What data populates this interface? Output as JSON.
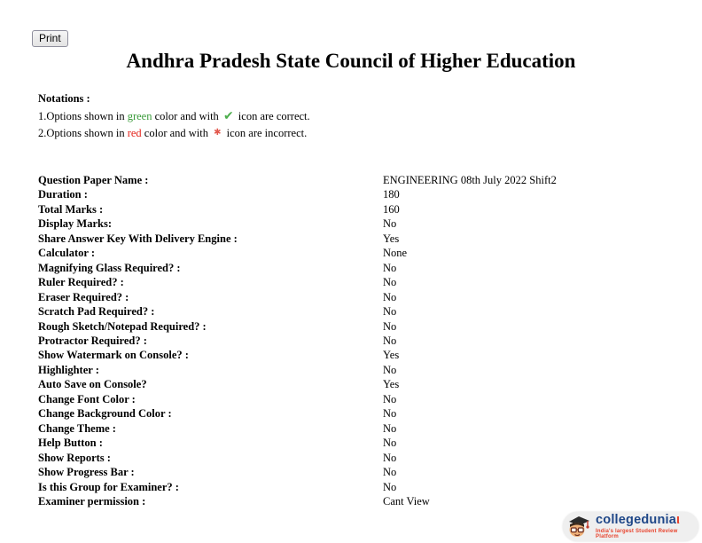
{
  "toolbar": {
    "print_label": "Print"
  },
  "header": {
    "title": "Andhra Pradesh State Council of Higher Education"
  },
  "notations": {
    "heading": "Notations :",
    "correct": {
      "prefix": "1.Options shown in ",
      "color_word": "green",
      "mid": " color and with ",
      "icon_glyph": "✔",
      "icon_name": "green-check-icon",
      "suffix": " icon are correct."
    },
    "incorrect": {
      "prefix": "2.Options shown in ",
      "color_word": "red",
      "mid": " color and with ",
      "icon_glyph": "✱",
      "icon_name": "red-cross-icon",
      "suffix": " icon are incorrect."
    }
  },
  "properties": [
    {
      "label": "Question Paper Name :",
      "value": "ENGINEERING 08th July 2022 Shift2"
    },
    {
      "label": "Duration :",
      "value": "180"
    },
    {
      "label": "Total Marks :",
      "value": "160"
    },
    {
      "label": "Display Marks:",
      "value": "No"
    },
    {
      "label": "Share Answer Key With Delivery Engine :",
      "value": "Yes"
    },
    {
      "label": "Calculator :",
      "value": "None"
    },
    {
      "label": "Magnifying Glass Required? :",
      "value": "No"
    },
    {
      "label": "Ruler Required? :",
      "value": "No"
    },
    {
      "label": "Eraser Required? :",
      "value": "No"
    },
    {
      "label": "Scratch Pad Required? :",
      "value": "No"
    },
    {
      "label": "Rough Sketch/Notepad Required? :",
      "value": "No"
    },
    {
      "label": "Protractor Required? :",
      "value": "No"
    },
    {
      "label": "Show Watermark on Console? :",
      "value": "Yes"
    },
    {
      "label": "Highlighter :",
      "value": "No"
    },
    {
      "label": "Auto Save on Console?",
      "value": "Yes"
    },
    {
      "label": "Change Font Color :",
      "value": "No"
    },
    {
      "label": "Change Background Color :",
      "value": "No"
    },
    {
      "label": "Change Theme :",
      "value": "No"
    },
    {
      "label": "Help Button :",
      "value": "No"
    },
    {
      "label": "Show Reports :",
      "value": "No"
    },
    {
      "label": "Show Progress Bar :",
      "value": "No"
    },
    {
      "label": "Is this Group for Examiner? :",
      "value": "No"
    },
    {
      "label": "Examiner permission :",
      "value": "Cant View"
    }
  ],
  "footer": {
    "brand": "collegedunia",
    "brand_mark": "ι",
    "tagline": "India's largest Student Review Platform"
  },
  "colors": {
    "green_word": "#3a9b3a",
    "red_word": "#e32119",
    "check_icon": "#4cae4c",
    "cross_icon": "#e2574c",
    "brand_navy": "#1f4788",
    "tagline_red": "#e8432d"
  }
}
